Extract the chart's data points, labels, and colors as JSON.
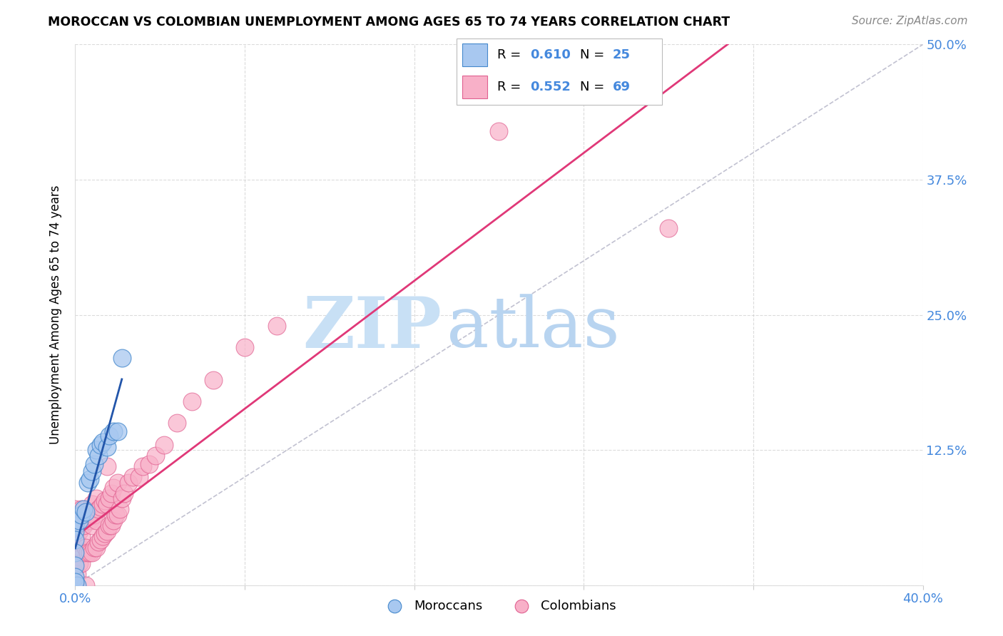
{
  "title": "MOROCCAN VS COLOMBIAN UNEMPLOYMENT AMONG AGES 65 TO 74 YEARS CORRELATION CHART",
  "source": "Source: ZipAtlas.com",
  "ylabel": "Unemployment Among Ages 65 to 74 years",
  "xlim": [
    0.0,
    0.4
  ],
  "ylim": [
    0.0,
    0.5
  ],
  "xtick_positions": [
    0.0,
    0.08,
    0.16,
    0.24,
    0.32,
    0.4
  ],
  "xtick_labels": [
    "0.0%",
    "",
    "",
    "",
    "",
    "40.0%"
  ],
  "ytick_positions": [
    0.0,
    0.125,
    0.25,
    0.375,
    0.5
  ],
  "ytick_labels_right": [
    "",
    "12.5%",
    "25.0%",
    "37.5%",
    "50.0%"
  ],
  "moroccan_R": "0.610",
  "moroccan_N": "25",
  "colombian_R": "0.552",
  "colombian_N": "69",
  "moroccan_face_color": "#a8c8f0",
  "moroccan_edge_color": "#4488cc",
  "colombian_face_color": "#f8b0c8",
  "colombian_edge_color": "#e06090",
  "moroccan_line_color": "#2255aa",
  "colombian_line_color": "#e03878",
  "diag_color": "#bbbbcc",
  "grid_color": "#cccccc",
  "axis_label_color": "#4488dd",
  "watermark_zip_color": "#c8e0f5",
  "watermark_atlas_color": "#b8d4f0",
  "background_color": "#ffffff",
  "moroccan_x": [
    0.0,
    0.0,
    0.0,
    0.0,
    0.0,
    0.0,
    0.001,
    0.002,
    0.003,
    0.004,
    0.005,
    0.006,
    0.007,
    0.008,
    0.009,
    0.01,
    0.011,
    0.012,
    0.013,
    0.015,
    0.016,
    0.018,
    0.02,
    0.022,
    0.0
  ],
  "moroccan_y": [
    0.055,
    0.05,
    0.042,
    0.03,
    0.018,
    0.008,
    0.0,
    0.06,
    0.065,
    0.07,
    0.068,
    0.095,
    0.098,
    0.105,
    0.112,
    0.125,
    0.12,
    0.13,
    0.132,
    0.128,
    0.138,
    0.142,
    0.142,
    0.21,
    0.003
  ],
  "colombian_x": [
    0.0,
    0.0,
    0.0,
    0.0,
    0.0,
    0.0,
    0.0,
    0.0,
    0.001,
    0.001,
    0.002,
    0.002,
    0.003,
    0.003,
    0.003,
    0.004,
    0.004,
    0.005,
    0.005,
    0.005,
    0.006,
    0.006,
    0.007,
    0.007,
    0.008,
    0.008,
    0.008,
    0.009,
    0.009,
    0.01,
    0.01,
    0.01,
    0.011,
    0.011,
    0.012,
    0.012,
    0.013,
    0.013,
    0.014,
    0.014,
    0.015,
    0.015,
    0.015,
    0.016,
    0.016,
    0.017,
    0.017,
    0.018,
    0.018,
    0.019,
    0.02,
    0.02,
    0.021,
    0.022,
    0.023,
    0.025,
    0.027,
    0.03,
    0.032,
    0.035,
    0.038,
    0.042,
    0.048,
    0.055,
    0.065,
    0.08,
    0.095,
    0.2,
    0.28
  ],
  "colombian_y": [
    0.0,
    0.0,
    0.015,
    0.03,
    0.04,
    0.05,
    0.06,
    0.07,
    0.01,
    0.04,
    0.02,
    0.05,
    0.02,
    0.045,
    0.07,
    0.03,
    0.055,
    0.0,
    0.035,
    0.065,
    0.03,
    0.06,
    0.03,
    0.06,
    0.03,
    0.055,
    0.075,
    0.035,
    0.065,
    0.035,
    0.06,
    0.08,
    0.04,
    0.07,
    0.042,
    0.072,
    0.045,
    0.075,
    0.048,
    0.078,
    0.05,
    0.075,
    0.11,
    0.055,
    0.08,
    0.055,
    0.085,
    0.06,
    0.09,
    0.065,
    0.065,
    0.095,
    0.07,
    0.08,
    0.085,
    0.095,
    0.1,
    0.1,
    0.11,
    0.112,
    0.12,
    0.13,
    0.15,
    0.17,
    0.19,
    0.22,
    0.24,
    0.42,
    0.33
  ]
}
